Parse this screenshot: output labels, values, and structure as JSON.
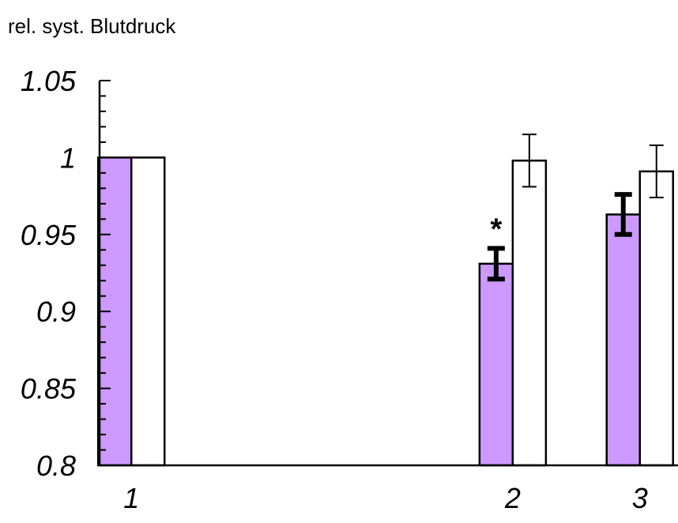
{
  "chart_data": {
    "type": "bar",
    "title": "rel. syst. Blutdruck",
    "xlabel": "",
    "ylabel": "",
    "ylim": [
      0.8,
      1.05
    ],
    "yticks": [
      "0.8",
      "0.85",
      "0.9",
      "0.95",
      "1",
      "1.05"
    ],
    "categories": [
      "1",
      "2",
      "3"
    ],
    "category_x": [
      1,
      13,
      17
    ],
    "xlim": [
      0,
      18.2
    ],
    "series": [
      {
        "fill": "#cc99ff",
        "values": [
          1.0,
          0.931,
          0.963
        ],
        "errors": [
          null,
          0.01,
          0.013
        ],
        "error_style": "bold"
      },
      {
        "fill": "#ffffff",
        "values": [
          1.0,
          0.998,
          0.991
        ],
        "errors": [
          null,
          0.017,
          0.017
        ],
        "error_style": "thin"
      }
    ],
    "annotations": [
      {
        "text": "*",
        "category": "2",
        "series": 0
      }
    ],
    "legend": "none",
    "grid": false
  }
}
